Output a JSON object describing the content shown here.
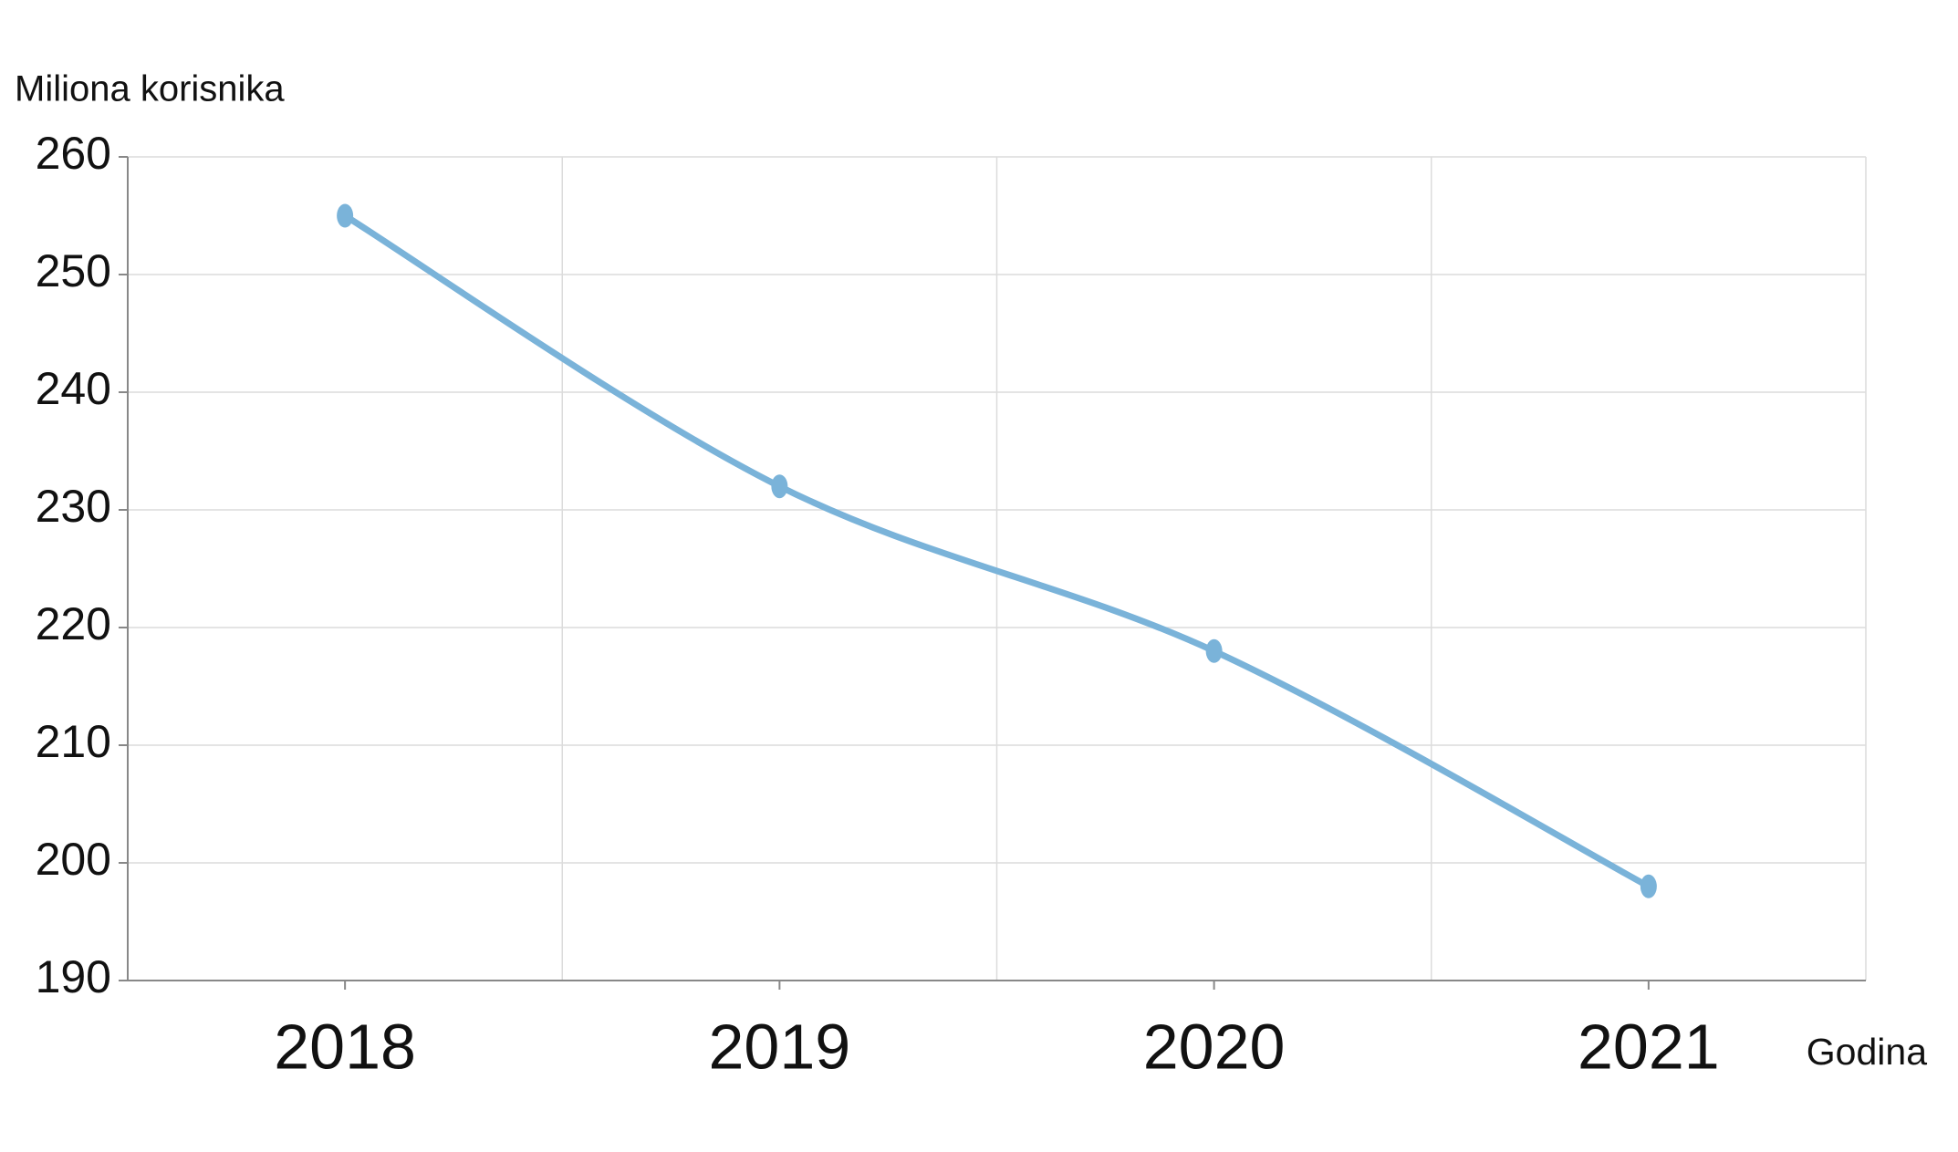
{
  "chart_data": {
    "type": "line",
    "y_label": "Miliona korisnika",
    "x_label": "Godina",
    "categories": [
      "2018",
      "2019",
      "2020",
      "2021"
    ],
    "values": [
      255,
      232,
      218,
      198
    ],
    "color": "#7ab3d9",
    "ylim": [
      190,
      260
    ],
    "yticks": [
      190,
      200,
      210,
      220,
      230,
      240,
      250,
      260
    ],
    "grid": true
  }
}
